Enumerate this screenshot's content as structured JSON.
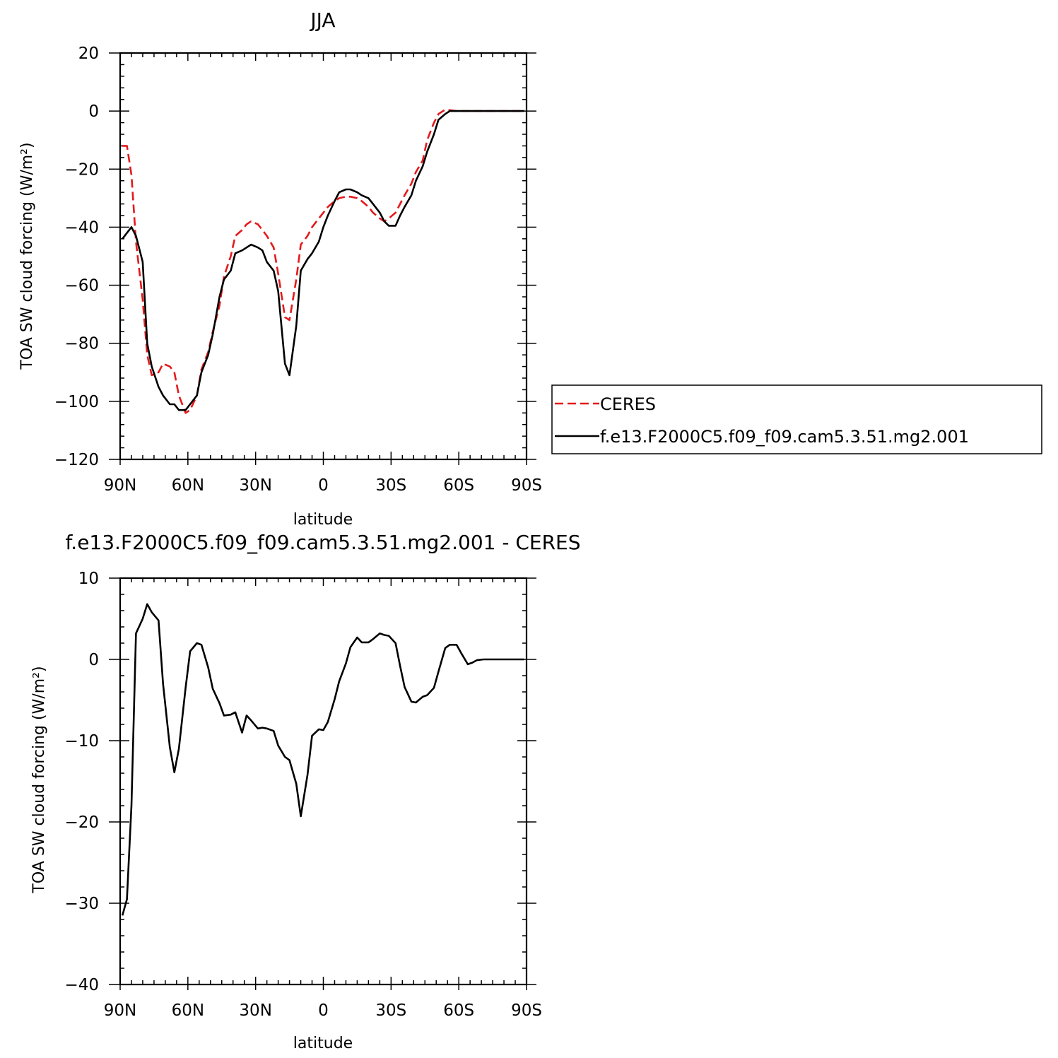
{
  "chart_data": [
    {
      "type": "line",
      "title": "JJA",
      "xlabel": "latitude",
      "ylabel": "TOA SW cloud forcing (W/m²)",
      "xlim": [
        90,
        -90
      ],
      "ylim": [
        -120,
        20
      ],
      "xticks": [
        {
          "value": 90,
          "label": "90N"
        },
        {
          "value": 60,
          "label": "60N"
        },
        {
          "value": 30,
          "label": "30N"
        },
        {
          "value": 0,
          "label": "0"
        },
        {
          "value": -30,
          "label": "30S"
        },
        {
          "value": -60,
          "label": "60S"
        },
        {
          "value": -90,
          "label": "90S"
        }
      ],
      "yticks": [
        20,
        0,
        -20,
        -40,
        -60,
        -80,
        -100,
        -120
      ],
      "legend_position": "right",
      "series": [
        {
          "name": "CERES",
          "color": "#e41a1c",
          "dash": true,
          "x": [
            89,
            87,
            85,
            83,
            80,
            78,
            76,
            73,
            71,
            68,
            66,
            64,
            61,
            59,
            56,
            54,
            51,
            49,
            46,
            44,
            41,
            39,
            36,
            34,
            32,
            29,
            27,
            25,
            22,
            20,
            17,
            15,
            12,
            10,
            7,
            5,
            2,
            0,
            -2,
            -5,
            -7,
            -10,
            -12,
            -15,
            -17,
            -20,
            -22,
            -25,
            -27,
            -29,
            -32,
            -34,
            -36,
            -39,
            -41,
            -44,
            -46,
            -49,
            -51,
            -54,
            -56,
            -59,
            -61,
            -64,
            -66,
            -68,
            -71,
            -73,
            -76,
            -78,
            -80,
            -83,
            -85,
            -87,
            -89
          ],
          "y": [
            -12,
            -12,
            -22,
            -45,
            -65,
            -84,
            -91,
            -90,
            -87,
            -88,
            -90,
            -98,
            -104,
            -103,
            -98,
            -89,
            -83,
            -76,
            -67,
            -57,
            -50,
            -43,
            -41,
            -39,
            -38,
            -39,
            -41,
            -43,
            -47,
            -56,
            -71,
            -72,
            -58,
            -46,
            -43,
            -40,
            -37,
            -35,
            -33,
            -31,
            -30,
            -29.5,
            -29.5,
            -30,
            -31,
            -33,
            -35,
            -37,
            -38,
            -37,
            -35,
            -32,
            -29,
            -25,
            -21,
            -17,
            -10,
            -4,
            -1,
            0.5,
            0.3,
            0,
            0,
            0,
            0,
            0,
            0,
            0,
            0,
            0,
            0,
            0,
            0,
            0,
            0
          ]
        },
        {
          "name": "f.e13.F2000C5.f09_f09.cam5.3.51.mg2.001",
          "color": "#000000",
          "dash": false,
          "x": [
            89,
            87,
            85,
            83,
            80,
            78,
            76,
            73,
            71,
            68,
            66,
            64,
            61,
            59,
            56,
            54,
            51,
            49,
            46,
            44,
            41,
            39,
            36,
            34,
            32,
            29,
            27,
            25,
            22,
            20,
            17,
            15,
            12,
            10,
            7,
            5,
            2,
            0,
            -2,
            -5,
            -7,
            -10,
            -12,
            -15,
            -17,
            -20,
            -22,
            -25,
            -27,
            -29,
            -32,
            -34,
            -36,
            -39,
            -41,
            -44,
            -46,
            -49,
            -51,
            -54,
            -56,
            -59,
            -61,
            -64,
            -66,
            -68,
            -71,
            -73,
            -76,
            -78,
            -80,
            -83,
            -85,
            -87,
            -89
          ],
          "y": [
            -44,
            -42,
            -40,
            -43,
            -52,
            -80,
            -88,
            -95,
            -98,
            -101,
            -101,
            -103,
            -103,
            -101,
            -98,
            -90,
            -84,
            -77,
            -64,
            -58,
            -55,
            -49,
            -48,
            -47,
            -46,
            -47,
            -48,
            -52,
            -55,
            -62,
            -87,
            -91,
            -74,
            -55,
            -51,
            -49,
            -45,
            -40,
            -36,
            -31,
            -28,
            -27,
            -27,
            -28,
            -29,
            -30,
            -32,
            -35,
            -38,
            -39.5,
            -39.5,
            -36,
            -33,
            -29,
            -24,
            -19,
            -14,
            -8,
            -3,
            -1,
            0,
            0,
            0,
            0,
            0,
            0,
            0,
            0,
            0,
            0,
            0,
            0,
            0,
            0,
            0
          ]
        }
      ]
    },
    {
      "type": "line",
      "title": "f.e13.F2000C5.f09_f09.cam5.3.51.mg2.001 - CERES",
      "xlabel": "latitude",
      "ylabel": "TOA SW cloud forcing (W/m²)",
      "xlim": [
        90,
        -90
      ],
      "ylim": [
        -40,
        10
      ],
      "xticks": [
        {
          "value": 90,
          "label": "90N"
        },
        {
          "value": 60,
          "label": "60N"
        },
        {
          "value": 30,
          "label": "30N"
        },
        {
          "value": 0,
          "label": "0"
        },
        {
          "value": -30,
          "label": "30S"
        },
        {
          "value": -60,
          "label": "60S"
        },
        {
          "value": -90,
          "label": "90S"
        }
      ],
      "yticks": [
        10,
        0,
        -10,
        -20,
        -30,
        -40
      ],
      "series": [
        {
          "name": "",
          "color": "#000000",
          "dash": false,
          "x": [
            89,
            87,
            85,
            83,
            80,
            78,
            76,
            73,
            71,
            68,
            66,
            64,
            61,
            59,
            56,
            54,
            51,
            49,
            46,
            44,
            41,
            39,
            36,
            34,
            32,
            29,
            27,
            25,
            22,
            20,
            17,
            15,
            12,
            10,
            7,
            5,
            2,
            0,
            -2,
            -5,
            -7,
            -10,
            -12,
            -15,
            -17,
            -20,
            -22,
            -25,
            -27,
            -29,
            -32,
            -34,
            -36,
            -39,
            -41,
            -44,
            -46,
            -49,
            -51,
            -54,
            -56,
            -59,
            -61,
            -64,
            -66,
            -68,
            -71,
            -73,
            -76,
            -78,
            -80,
            -83,
            -85,
            -87,
            -89
          ],
          "y": [
            -31.5,
            -29.5,
            -18,
            3.2,
            5,
            6.8,
            5.8,
            4.8,
            -3,
            -10.8,
            -13.9,
            -11,
            -3.5,
            1,
            2,
            1.8,
            -1,
            -3.6,
            -5.4,
            -6.9,
            -6.8,
            -6.5,
            -9,
            -6.9,
            -7.5,
            -8.5,
            -8.4,
            -8.5,
            -8.8,
            -10.6,
            -12,
            -12.4,
            -15.3,
            -19.3,
            -14.2,
            -9.4,
            -8.6,
            -8.7,
            -7.7,
            -4.9,
            -2.7,
            -0.5,
            1.5,
            2.7,
            2.1,
            2.1,
            2.5,
            3.2,
            3,
            2.9,
            2,
            -0.8,
            -3.4,
            -5.2,
            -5.3,
            -4.6,
            -4.4,
            -3.5,
            -1.5,
            1.4,
            1.8,
            1.8,
            0.8,
            -0.6,
            -0.4,
            -0.1,
            0,
            0,
            0,
            0,
            0,
            0,
            0,
            0,
            0
          ]
        }
      ]
    }
  ]
}
